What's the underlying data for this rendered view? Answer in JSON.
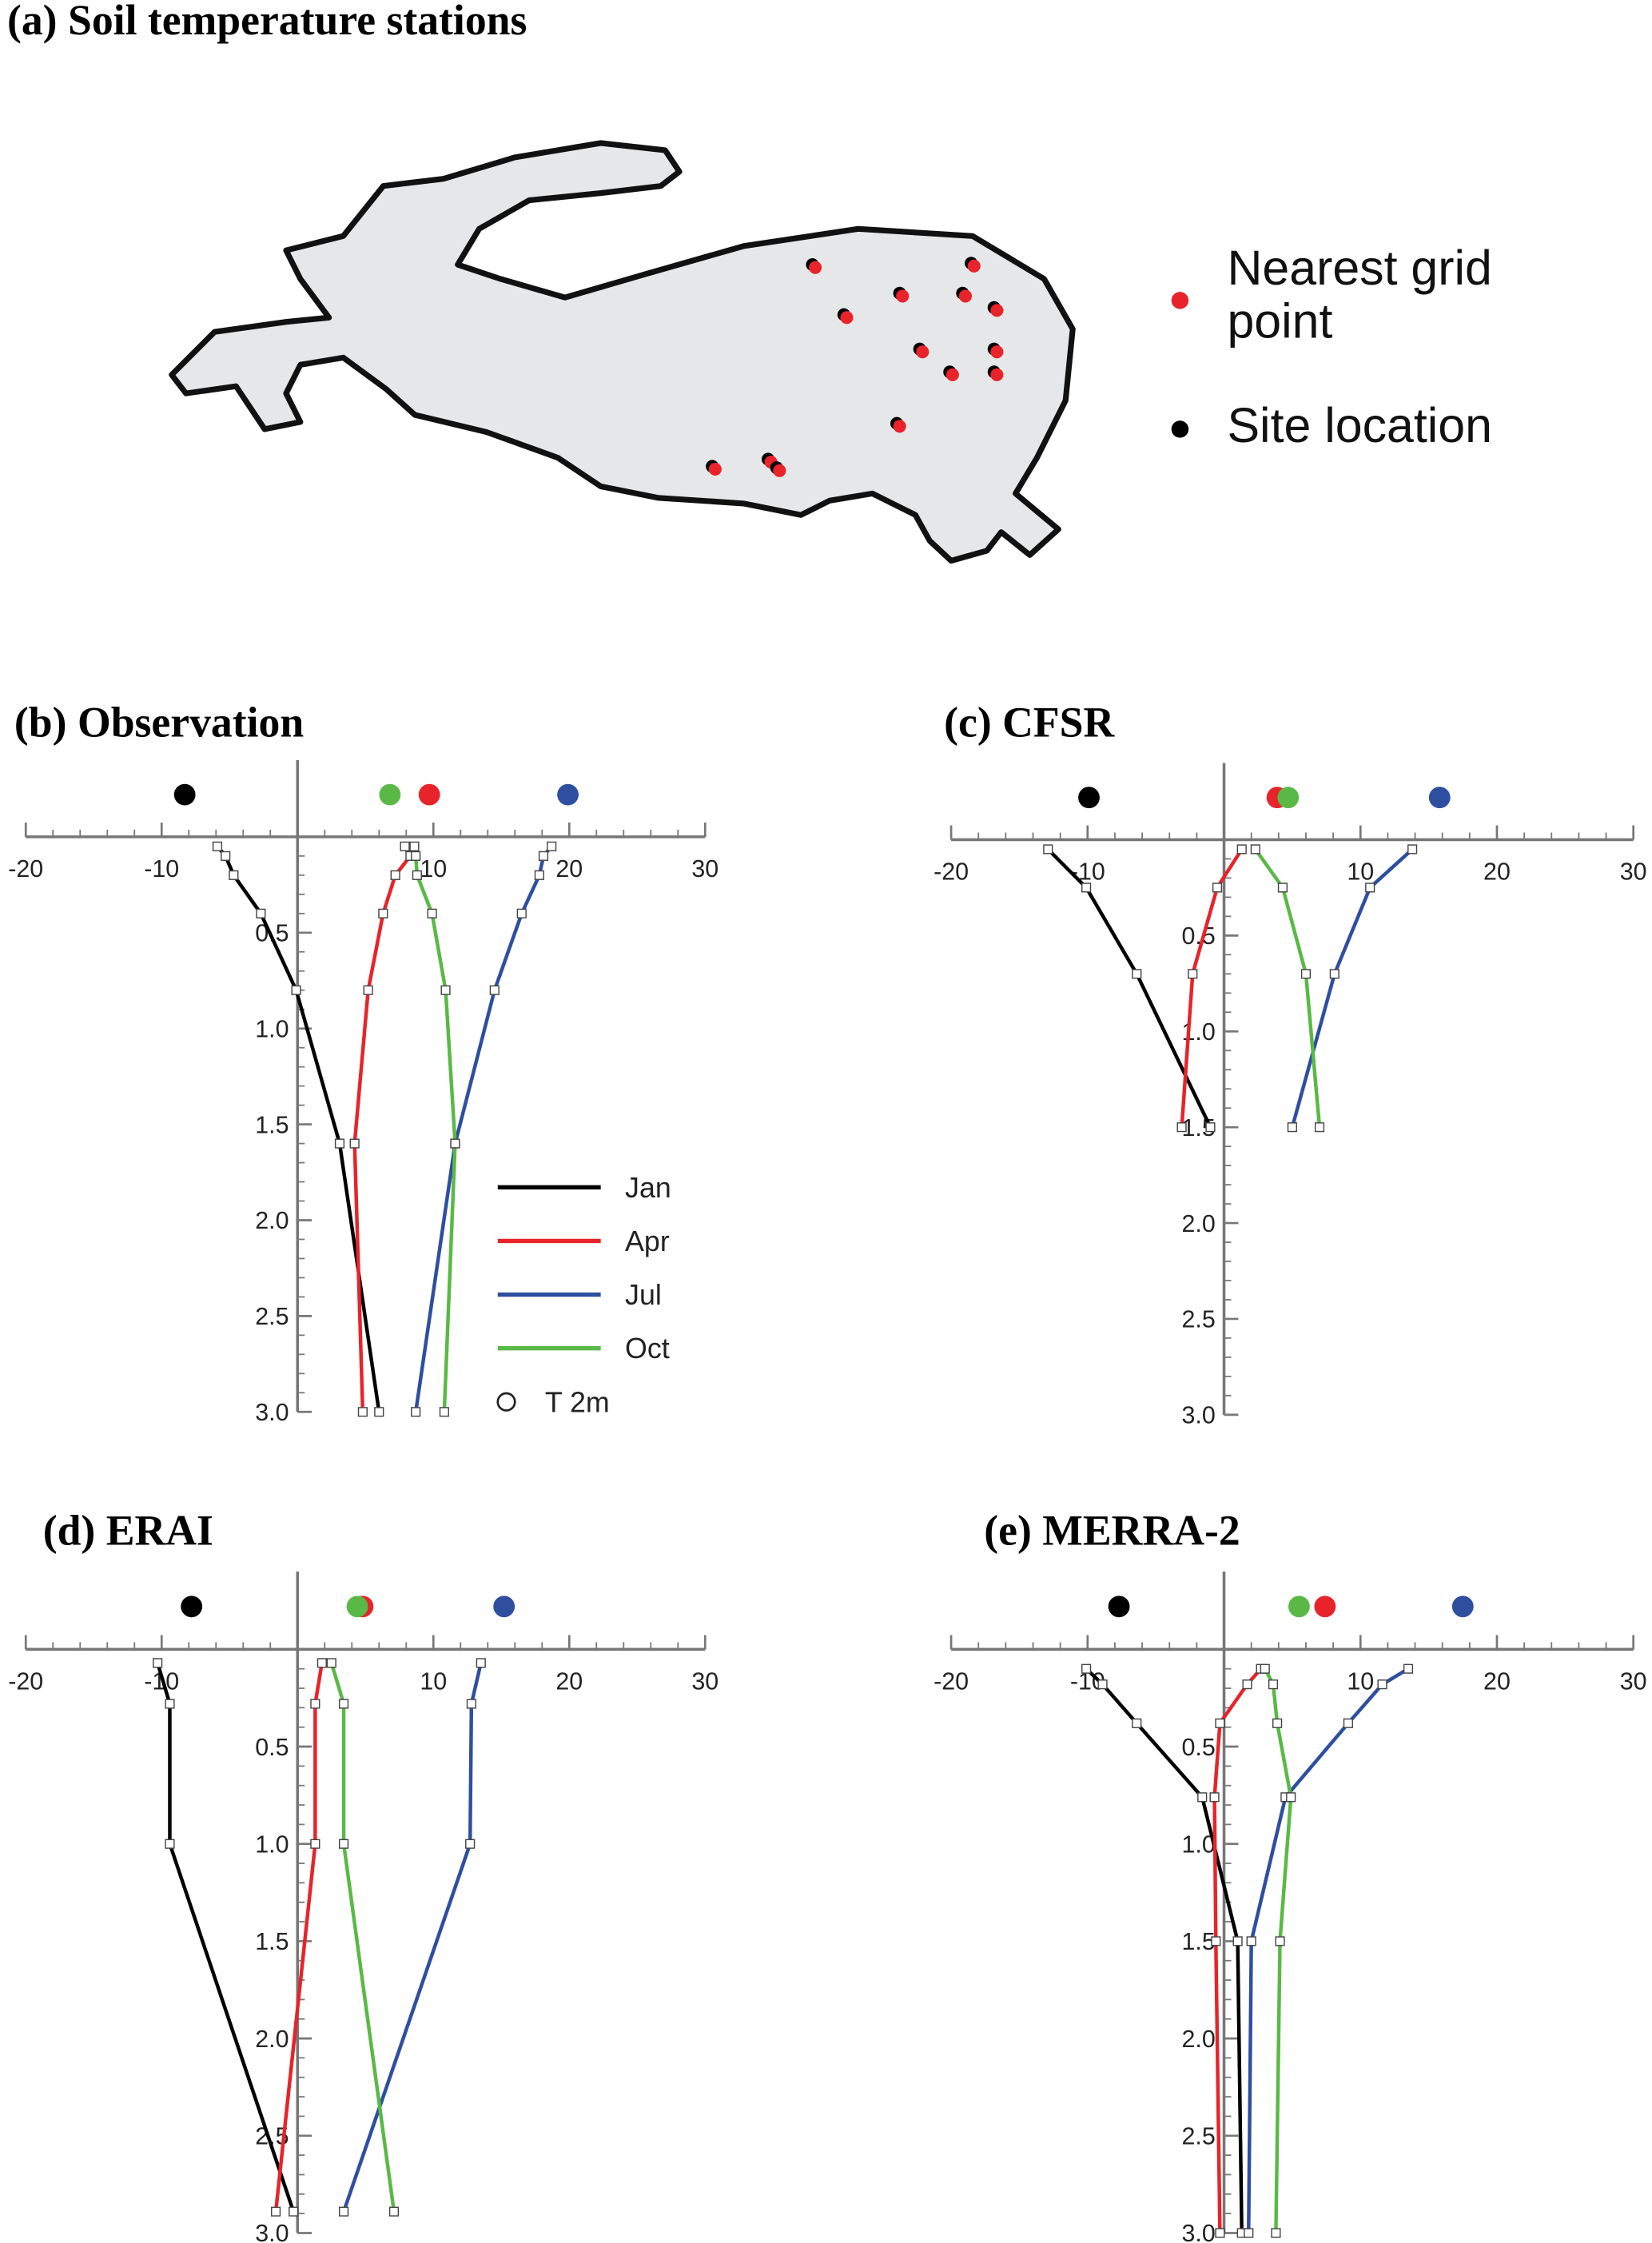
{
  "chart_data": [
    {
      "type": "map",
      "title": "(a) Soil temperature stations",
      "legend": [
        {
          "name": "Nearest grid point",
          "color": "#e8232a"
        },
        {
          "name": "Site location",
          "color": "#000000"
        }
      ]
    },
    {
      "type": "line",
      "title": "(b) Observation",
      "xlim": [
        -20,
        30
      ],
      "xticks": [
        -20,
        -10,
        10,
        20,
        30
      ],
      "x_minor_step": 2,
      "ylim": [
        -0.4,
        3
      ],
      "y_reversed": true,
      "yticks": [
        0.5,
        {
          "value": 1,
          "label": "1.0"
        },
        1.5,
        {
          "value": 2,
          "label": "2.0"
        },
        2.5,
        {
          "value": 3,
          "label": "3.0"
        }
      ],
      "legend": true,
      "series": [
        {
          "name": "Jan",
          "color": "#000000",
          "x": [
            -5.9,
            -5.3,
            -4.7,
            -2.7,
            -0.1,
            3.1,
            6.0
          ],
          "y": [
            0.05,
            0.1,
            0.2,
            0.4,
            0.8,
            1.6,
            3.0
          ]
        },
        {
          "name": "Apr",
          "color": "#e8232a",
          "x": [
            8.6,
            8.3,
            7.2,
            6.3,
            5.2,
            4.2,
            4.8
          ],
          "y": [
            0.05,
            0.1,
            0.2,
            0.4,
            0.8,
            1.6,
            3.0
          ]
        },
        {
          "name": "Jul",
          "color": "#2e4fa0",
          "x": [
            18.7,
            18.1,
            17.8,
            16.5,
            14.5,
            11.6,
            8.7
          ],
          "y": [
            0.05,
            0.1,
            0.2,
            0.4,
            0.8,
            1.6,
            3.0
          ]
        },
        {
          "name": "Oct",
          "color": "#5ab946",
          "x": [
            7.9,
            8.7,
            8.8,
            9.9,
            10.9,
            11.6,
            10.8
          ],
          "y": [
            0.05,
            0.1,
            0.2,
            0.4,
            0.8,
            1.6,
            3.0
          ]
        }
      ],
      "t2m": {
        "name": "T 2m",
        "values": [
          -8.3,
          9.7,
          19.9,
          6.8
        ]
      }
    },
    {
      "type": "line",
      "title": "(c) CFSR",
      "xlim": [
        -20,
        30
      ],
      "xticks": [
        -20,
        -10,
        10,
        20,
        30
      ],
      "x_minor_step": 2,
      "ylim": [
        -0.4,
        3
      ],
      "y_reversed": true,
      "yticks": [
        0.5,
        {
          "value": 1,
          "label": "1.0"
        },
        1.5,
        {
          "value": 2,
          "label": "2.0"
        },
        2.5,
        {
          "value": 3,
          "label": "3.0"
        }
      ],
      "series": [
        {
          "color": "#000000",
          "x": [
            -12.9,
            -10.1,
            -6.4,
            -1.0
          ],
          "y": [
            0.05,
            0.25,
            0.7,
            1.5
          ]
        },
        {
          "color": "#e8232a",
          "x": [
            1.3,
            -0.5,
            -2.3,
            -3.1
          ],
          "y": [
            0.05,
            0.25,
            0.7,
            1.5
          ]
        },
        {
          "color": "#2e4fa0",
          "x": [
            13.8,
            10.7,
            8.1,
            5.0
          ],
          "y": [
            0.05,
            0.25,
            0.7,
            1.5
          ]
        },
        {
          "color": "#5ab946",
          "x": [
            2.3,
            4.3,
            6.0,
            7.0
          ],
          "y": [
            0.05,
            0.25,
            0.7,
            1.5
          ]
        }
      ],
      "t2m": {
        "values": [
          -9.9,
          3.9,
          15.8,
          4.7
        ]
      }
    },
    {
      "type": "line",
      "title": "(d) ERAI",
      "xlim": [
        -20,
        30
      ],
      "xticks": [
        -20,
        -10,
        10,
        20,
        30
      ],
      "x_minor_step": 2,
      "ylim": [
        -0.4,
        3
      ],
      "y_reversed": true,
      "yticks": [
        0.5,
        {
          "value": 1,
          "label": "1.0"
        },
        1.5,
        {
          "value": 2,
          "label": "2.0"
        },
        2.5,
        {
          "value": 3,
          "label": "3.0"
        }
      ],
      "series": [
        {
          "color": "#000000",
          "x": [
            -10.3,
            -9.4,
            -9.4,
            -0.3
          ],
          "y": [
            0.07,
            0.28,
            1.0,
            2.89
          ]
        },
        {
          "color": "#e8232a",
          "x": [
            1.8,
            1.3,
            1.3,
            -1.6
          ],
          "y": [
            0.07,
            0.28,
            1.0,
            2.89
          ]
        },
        {
          "color": "#2e4fa0",
          "x": [
            13.5,
            12.8,
            12.7,
            3.4
          ],
          "y": [
            0.07,
            0.28,
            1.0,
            2.89
          ]
        },
        {
          "color": "#5ab946",
          "x": [
            2.5,
            3.4,
            3.4,
            7.1
          ],
          "y": [
            0.07,
            0.28,
            1.0,
            2.89
          ]
        }
      ],
      "t2m": {
        "values": [
          -7.8,
          4.8,
          15.2,
          4.4
        ]
      }
    },
    {
      "type": "line",
      "title": "(e) MERRA-2",
      "xlim": [
        -20,
        30
      ],
      "xticks": [
        -20,
        -10,
        10,
        20,
        30
      ],
      "x_minor_step": 2,
      "ylim": [
        -0.4,
        3
      ],
      "y_reversed": true,
      "yticks": [
        0.5,
        {
          "value": 1,
          "label": "1.0"
        },
        1.5,
        {
          "value": 2,
          "label": "2.0"
        },
        2.5,
        {
          "value": 3,
          "label": "3.0"
        }
      ],
      "series": [
        {
          "color": "#000000",
          "x": [
            -10.1,
            -8.9,
            -6.4,
            -1.6,
            1.0,
            1.3
          ],
          "y": [
            0.1,
            0.18,
            0.38,
            0.76,
            1.5,
            3.0
          ]
        },
        {
          "color": "#e8232a",
          "x": [
            2.7,
            1.7,
            -0.3,
            -0.7,
            -0.6,
            -0.3
          ],
          "y": [
            0.1,
            0.18,
            0.38,
            0.76,
            1.5,
            3.0
          ]
        },
        {
          "color": "#2e4fa0",
          "x": [
            13.5,
            11.6,
            9.1,
            4.5,
            2.0,
            1.8
          ],
          "y": [
            0.1,
            0.18,
            0.38,
            0.76,
            1.5,
            3.0
          ]
        },
        {
          "color": "#5ab946",
          "x": [
            3.0,
            3.6,
            3.9,
            4.9,
            4.1,
            3.8
          ],
          "y": [
            0.1,
            0.18,
            0.38,
            0.76,
            1.5,
            3.0
          ]
        }
      ],
      "t2m": {
        "values": [
          -7.7,
          7.4,
          17.5,
          5.5
        ]
      }
    }
  ]
}
